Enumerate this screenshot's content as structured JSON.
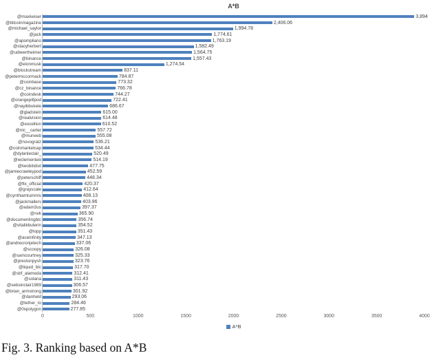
{
  "title": "A*B",
  "legend": {
    "label": "A*B",
    "color": "#4F81BD"
  },
  "caption": "Fig. 3. Ranking based on A*B",
  "chart_data": {
    "type": "bar",
    "orientation": "horizontal",
    "title": "A*B",
    "legend_entries": [
      "A*B"
    ],
    "legend_position": "bottom",
    "bar_color": "#4F81BD",
    "grid": false,
    "xlim": [
      0,
      4000
    ],
    "x_ticks": [
      0,
      500,
      1000,
      1500,
      2000,
      2500,
      3000,
      3500,
      4000
    ],
    "categories": [
      "@maxkeiser",
      "@bitcoinmagazine",
      "@michael_saylor",
      "@jack",
      "@apompliano",
      "@stacyherbert",
      "@udiwertheimer",
      "@binance",
      "@elonmusk",
      "@blockstream",
      "@petermccormack",
      "@coinbase",
      "@cz_binance",
      "@coindesk",
      "@orangepillpod",
      "@nayibbukele",
      "@gladstein",
      "@realvision",
      "@excellion",
      "@nic__carter",
      "@muneeb",
      "@novogratz",
      "@coinmarketcap",
      "@dylanleclair_",
      "@wclementeiii",
      "@twobitidiot",
      "@jamiecrawleypod",
      "@peterschiff",
      "@ftx_official",
      "@grayscale",
      "@cynthiamlummis",
      "@jackmallers",
      "@adam3us",
      "@nvk",
      "@documentingbtc",
      "@vitalikbuterin",
      "@lopp",
      "@aceinfinity",
      "@andrecronjetech",
      "@scoopy",
      "@samcourtney",
      "@prestonpysh",
      "@liquid_btc",
      "@sbf_alameda",
      "@solana",
      "@sebsinclair1989",
      "@brian_armstrong",
      "@danheld",
      "@tether_to",
      "@0xpolygon"
    ],
    "values": [
      3894,
      2406.06,
      1994.78,
      1774.61,
      1763.19,
      1582.49,
      1564.75,
      1557.43,
      1274.54,
      837.11,
      784.87,
      773.32,
      766.78,
      744.27,
      722.41,
      686.67,
      615.0,
      614.48,
      610.52,
      557.72,
      555.08,
      536.21,
      534.44,
      520.49,
      514.19,
      477.75,
      452.59,
      448.34,
      420.37,
      412.64,
      408.13,
      403.96,
      397.37,
      365.9,
      356.74,
      354.52,
      351.43,
      347.13,
      337.06,
      326.08,
      325.33,
      323.76,
      317.7,
      312.41,
      311.43,
      306.57,
      301.92,
      293.06,
      284.46,
      277.85
    ],
    "value_labels": [
      "3,894",
      "2,406.06",
      "1,994.78",
      "1,774.61",
      "1,763.19",
      "1,582.49",
      "1,564.75",
      "1,557.43",
      "1,274.54",
      "837.11",
      "784.87",
      "773.32",
      "766.78",
      "744.27",
      "722.41",
      "686.67",
      "615.00",
      "614.48",
      "610.52",
      "557.72",
      "555.08",
      "536.21",
      "534.44",
      "520.49",
      "514.19",
      "477.75",
      "452.59",
      "448.34",
      "420.37",
      "412.64",
      "408.13",
      "403.96",
      "397.37",
      "365.90",
      "356.74",
      "354.52",
      "351.43",
      "347.13",
      "337.06",
      "326.08",
      "325.33",
      "323.76",
      "317.70",
      "312.41",
      "311.43",
      "306.57",
      "301.92",
      "293.06",
      "284.46",
      "277.85"
    ]
  }
}
